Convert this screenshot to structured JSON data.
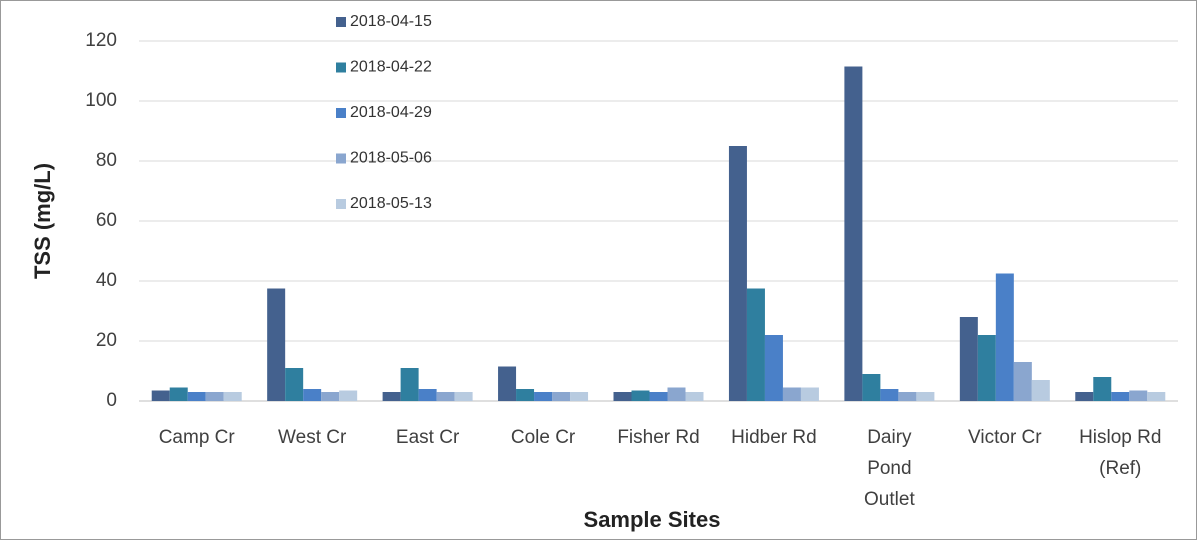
{
  "chart_data": {
    "type": "bar",
    "y_label": "TSS (mg/L)",
    "x_label": "Sample Sites",
    "categories": [
      [
        "Camp Cr"
      ],
      [
        "West Cr"
      ],
      [
        "East Cr"
      ],
      [
        "Cole Cr"
      ],
      [
        "Fisher Rd"
      ],
      [
        "Hidber Rd"
      ],
      [
        "Dairy",
        "Pond",
        "Outlet"
      ],
      [
        "Victor Cr"
      ],
      [
        "Hislop Rd",
        "(Ref)"
      ]
    ],
    "series": [
      {
        "name": "2018-04-15",
        "color": "#44618e",
        "values": [
          3.5,
          37.5,
          3,
          11.5,
          3,
          85,
          111.5,
          28,
          3
        ]
      },
      {
        "name": "2018-04-22",
        "color": "#2f7f9f",
        "values": [
          4.5,
          11,
          11,
          4,
          3.5,
          37.5,
          9,
          22,
          8
        ]
      },
      {
        "name": "2018-04-29",
        "color": "#4a80c8",
        "values": [
          3,
          4,
          4,
          3,
          3,
          22,
          4,
          42.5,
          3
        ]
      },
      {
        "name": "2018-05-06",
        "color": "#8aa6cf",
        "values": [
          3,
          3,
          3,
          3,
          4.5,
          4.5,
          3,
          13,
          3.5
        ]
      },
      {
        "name": "2018-05-13",
        "color": "#b8cbe0",
        "values": [
          3,
          3.5,
          3,
          3,
          3,
          4.5,
          3,
          7,
          3
        ]
      }
    ],
    "ylim": [
      0,
      120
    ],
    "yticks": [
      0,
      20,
      40,
      60,
      80,
      100,
      120
    ],
    "grid": true
  }
}
